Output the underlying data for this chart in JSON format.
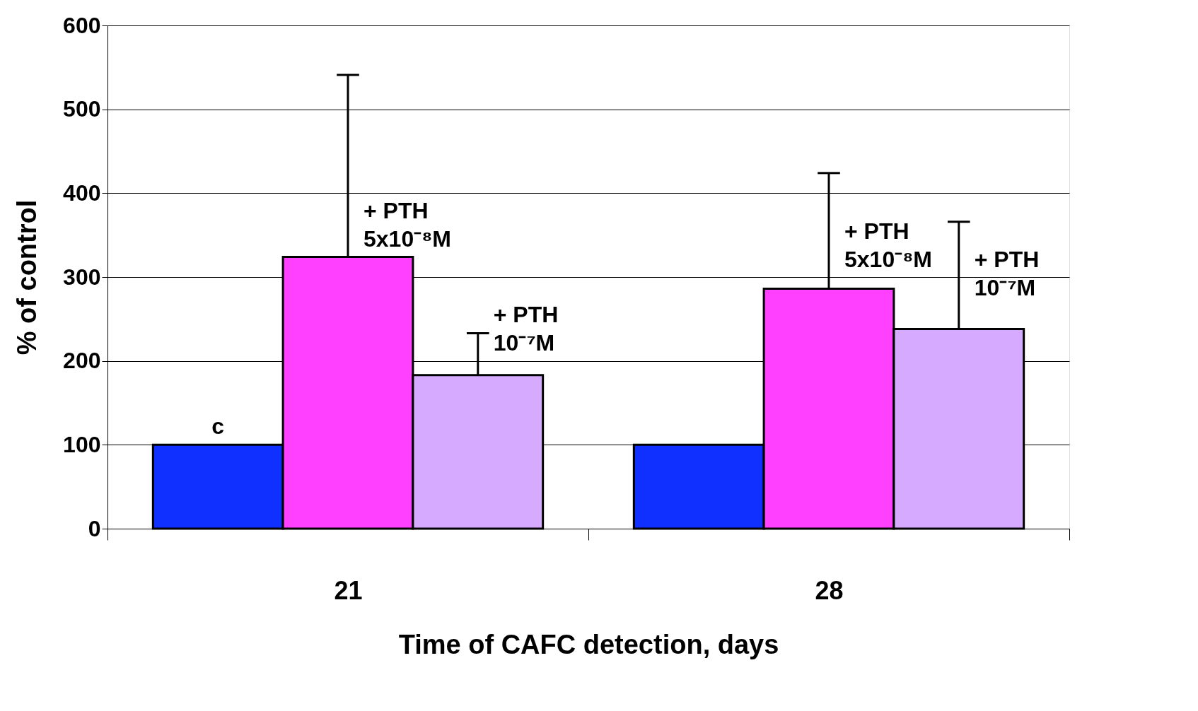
{
  "chart_data": {
    "type": "bar",
    "xlabel": "Time of CAFC detection, days",
    "ylabel": "% of control",
    "categories": [
      "21",
      "28"
    ],
    "series": [
      {
        "color": "#1030ff",
        "values": [
          100,
          100
        ],
        "errors": [
          null,
          null
        ],
        "value_labels": [
          "c",
          null
        ]
      },
      {
        "color": "#ff40ff",
        "values": [
          324,
          286
        ],
        "errors": [
          [
            324,
            541
          ],
          [
            286,
            424
          ]
        ],
        "value_labels": [
          "+ PTH\n5x10⁻⁸M",
          "+ PTH\n5x10⁻⁸M"
        ]
      },
      {
        "color": "#d6aaff",
        "values": [
          183,
          238
        ],
        "errors": [
          [
            183,
            233
          ],
          [
            238,
            366
          ]
        ],
        "value_labels": [
          "+ PTH\n10⁻⁷M",
          "+ PTH\n10⁻⁷M"
        ]
      }
    ],
    "ylim": [
      0,
      600
    ],
    "yticks": [
      0,
      100,
      200,
      300,
      400,
      500,
      600
    ],
    "grid": "y",
    "legend": false
  }
}
